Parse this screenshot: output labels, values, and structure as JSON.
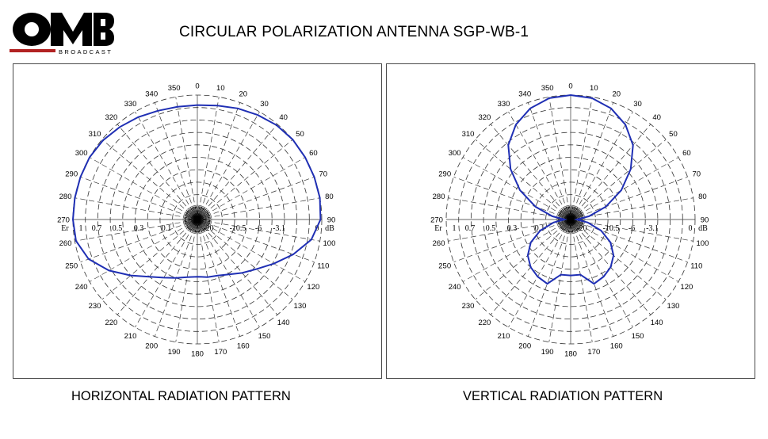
{
  "header": {
    "logo_text": "OMB",
    "logo_subtext": "BROADCAST",
    "title": "CIRCULAR POLARIZATION ANTENNA SGP-WB-1"
  },
  "colors": {
    "pattern": "#1f2fb4",
    "grid": "#333333",
    "logo_red": "#b22222"
  },
  "captions": {
    "horizontal": "HORIZONTAL RADIATION PATTERN",
    "vertical": "VERTICAL RADIATION PATTERN"
  },
  "chart_data": [
    {
      "type": "polar",
      "title": "HORIZONTAL RADIATION PATTERN",
      "angle_unit": "degrees",
      "angle_ticks": [
        0,
        10,
        20,
        30,
        40,
        50,
        60,
        70,
        80,
        90,
        100,
        110,
        120,
        130,
        140,
        150,
        160,
        170,
        180,
        190,
        200,
        210,
        220,
        230,
        240,
        250,
        260,
        270,
        280,
        290,
        300,
        310,
        320,
        330,
        340,
        350
      ],
      "radial_label_left": "Er",
      "radial_ticks_left": [
        "1",
        "0.7",
        "0.5",
        "0.3",
        "0.1"
      ],
      "radial_label_right": "dB",
      "radial_ticks_right": [
        "-20",
        "-10.5",
        "-6",
        "-3.1",
        "0"
      ],
      "grid": true,
      "series": [
        {
          "angles": [
            0,
            10,
            20,
            30,
            40,
            50,
            60,
            70,
            80,
            90,
            100,
            110,
            120,
            130,
            140,
            150,
            160,
            170,
            180,
            190,
            200,
            210,
            220,
            230,
            240,
            250,
            260,
            270,
            280,
            290,
            300,
            310,
            320,
            330,
            340,
            350
          ],
          "values": [
            0.92,
            0.93,
            0.95,
            0.97,
            0.99,
            1.0,
            1.0,
            1.0,
            1.0,
            0.99,
            0.93,
            0.82,
            0.71,
            0.62,
            0.56,
            0.51,
            0.48,
            0.47,
            0.46,
            0.47,
            0.5,
            0.54,
            0.6,
            0.7,
            0.82,
            0.93,
            0.99,
            1.0,
            1.0,
            1.0,
            1.0,
            0.99,
            0.97,
            0.95,
            0.93,
            0.92
          ]
        }
      ]
    },
    {
      "type": "polar",
      "title": "VERTICAL RADIATION PATTERN",
      "angle_unit": "degrees",
      "angle_ticks": [
        0,
        10,
        20,
        30,
        40,
        50,
        60,
        70,
        80,
        90,
        100,
        110,
        120,
        130,
        140,
        150,
        160,
        170,
        180,
        190,
        200,
        210,
        220,
        230,
        240,
        250,
        260,
        270,
        280,
        290,
        300,
        310,
        320,
        330,
        340,
        350
      ],
      "radial_label_left": "Er",
      "radial_ticks_left": [
        "1",
        "0.7",
        "0.5",
        "0.3",
        "0.1"
      ],
      "radial_label_right": "dB",
      "radial_ticks_right": [
        "-20",
        "-10.5",
        "-6",
        "-3.1",
        "0"
      ],
      "grid": true,
      "series": [
        {
          "angles": [
            0,
            10,
            20,
            30,
            40,
            50,
            60,
            70,
            80,
            90,
            100,
            110,
            120,
            130,
            140,
            150,
            160,
            170,
            180,
            190,
            200,
            210,
            220,
            230,
            240,
            250,
            260,
            270,
            280,
            290,
            300,
            310,
            320,
            330,
            340,
            350
          ],
          "values": [
            1.0,
            0.99,
            0.95,
            0.88,
            0.78,
            0.63,
            0.47,
            0.3,
            0.15,
            0.05,
            0.14,
            0.26,
            0.37,
            0.45,
            0.5,
            0.53,
            0.55,
            0.45,
            0.45,
            0.45,
            0.55,
            0.53,
            0.5,
            0.45,
            0.37,
            0.26,
            0.14,
            0.05,
            0.15,
            0.3,
            0.47,
            0.63,
            0.78,
            0.88,
            0.95,
            0.99
          ]
        }
      ]
    }
  ]
}
